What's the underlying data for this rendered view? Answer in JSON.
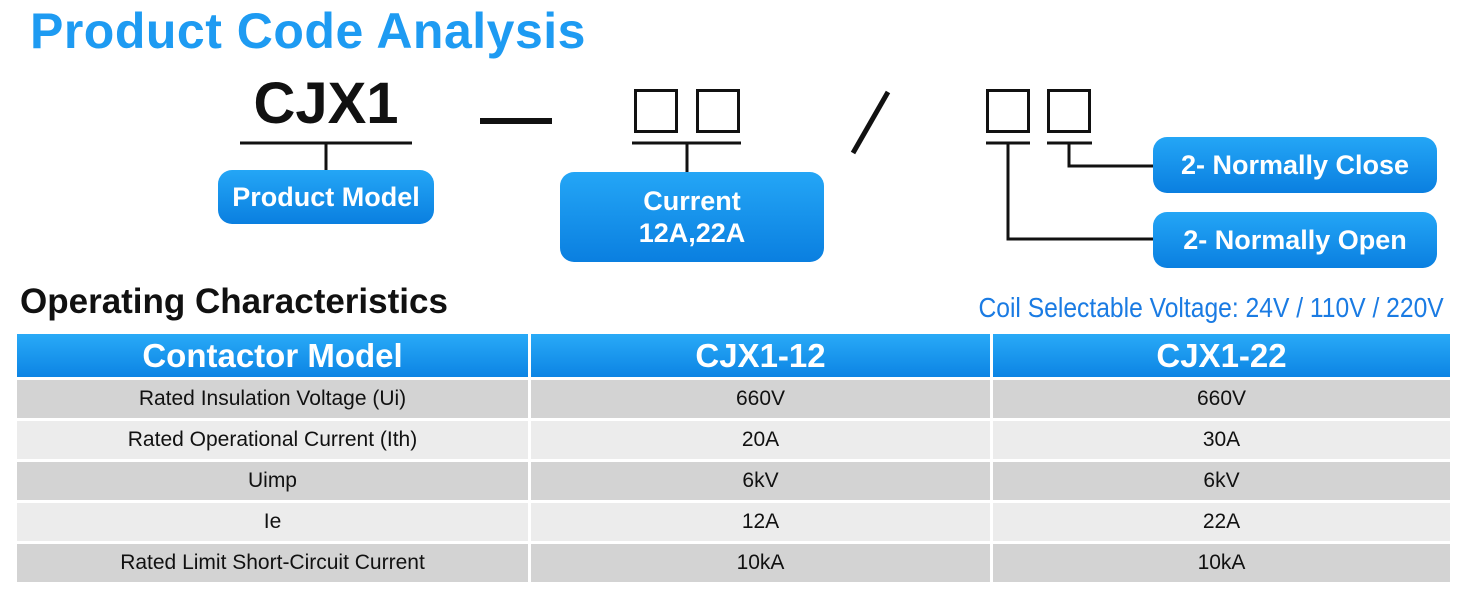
{
  "title": "Product Code Analysis",
  "code": {
    "model": "CJX1",
    "separator_slash": "/"
  },
  "labels": {
    "product_model": "Product Model",
    "current_title": "Current",
    "current_values": "12A,22A",
    "normally_close": "2- Normally Close",
    "normally_open": "2- Normally Open"
  },
  "section": {
    "title": "Operating Characteristics",
    "coil_voltage": "Coil Selectable Voltage: 24V / 110V / 220V"
  },
  "table": {
    "headers": [
      "Contactor Model",
      "CJX1-12",
      "CJX1-22"
    ],
    "rows": [
      [
        "Rated Insulation Voltage (Ui)",
        "660V",
        "660V"
      ],
      [
        "Rated Operational Current (Ith)",
        "20A",
        "30A"
      ],
      [
        "Uimp",
        "6kV",
        "6kV"
      ],
      [
        "Ie",
        "12A",
        "22A"
      ],
      [
        "Rated Limit Short-Circuit Current",
        "10kA",
        "10kA"
      ]
    ]
  },
  "colors": {
    "accent": "#1e9bf2",
    "pill_top": "#24a6f6",
    "pill_bottom": "#0a7fe0",
    "row_odd": "#d3d3d3",
    "row_even": "#ececec"
  }
}
